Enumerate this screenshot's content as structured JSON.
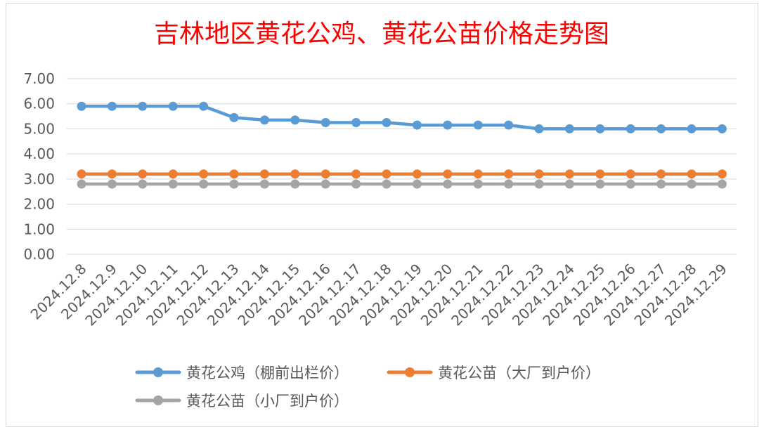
{
  "chart_data": {
    "type": "line",
    "title": "吉林地区黄花公鸡、黄花公苗价格走势图",
    "xlabel": "",
    "ylabel": "",
    "ylim": [
      0,
      7
    ],
    "yticks": [
      "0.00",
      "1.00",
      "2.00",
      "3.00",
      "4.00",
      "5.00",
      "6.00",
      "7.00"
    ],
    "grid": true,
    "legend_position": "bottom",
    "categories": [
      "2024.12.8",
      "2024.12.9",
      "2024.12.10",
      "2024.12.11",
      "2024.12.12",
      "2024.12.13",
      "2024.12.14",
      "2024.12.15",
      "2024.12.16",
      "2024.12.17",
      "2024.12.18",
      "2024.12.19",
      "2024.12.20",
      "2024.12.21",
      "2024.12.22",
      "2024.12.23",
      "2024.12.24",
      "2024.12.25",
      "2024.12.26",
      "2024.12.27",
      "2024.12.28",
      "2024.12.29"
    ],
    "series": [
      {
        "name": "黄花公鸡（棚前出栏价）",
        "color": "#5b9bd5",
        "values": [
          5.9,
          5.9,
          5.9,
          5.9,
          5.9,
          5.45,
          5.35,
          5.35,
          5.25,
          5.25,
          5.25,
          5.15,
          5.15,
          5.15,
          5.15,
          5.0,
          5.0,
          5.0,
          5.0,
          5.0,
          5.0,
          5.0
        ]
      },
      {
        "name": "黄花公苗（大厂到户价）",
        "color": "#ed7d31",
        "values": [
          3.2,
          3.2,
          3.2,
          3.2,
          3.2,
          3.2,
          3.2,
          3.2,
          3.2,
          3.2,
          3.2,
          3.2,
          3.2,
          3.2,
          3.2,
          3.2,
          3.2,
          3.2,
          3.2,
          3.2,
          3.2,
          3.2
        ]
      },
      {
        "name": "黄花公苗（小厂到户价）",
        "color": "#a5a5a5",
        "values": [
          2.8,
          2.8,
          2.8,
          2.8,
          2.8,
          2.8,
          2.8,
          2.8,
          2.8,
          2.8,
          2.8,
          2.8,
          2.8,
          2.8,
          2.8,
          2.8,
          2.8,
          2.8,
          2.8,
          2.8,
          2.8,
          2.8
        ]
      }
    ]
  }
}
